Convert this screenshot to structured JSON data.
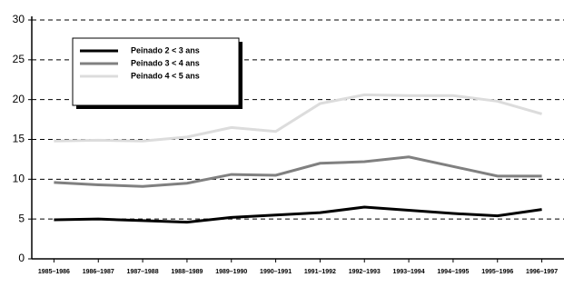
{
  "chart_data": {
    "type": "line",
    "categories": [
      "1985–1986",
      "1986–1987",
      "1987–1988",
      "1988–1989",
      "1989–1990",
      "1990–1991",
      "1991–1992",
      "1992–1993",
      "1993–1994",
      "1994–1995",
      "1995–1996",
      "1996–1997"
    ],
    "series": [
      {
        "name": "Peinado 2 < 3 ans",
        "color": "#000000",
        "values": [
          4.9,
          5.0,
          4.8,
          4.6,
          5.2,
          5.5,
          5.8,
          6.5,
          6.1,
          5.7,
          5.4,
          6.2
        ]
      },
      {
        "name": "Peinado 3 < 4 ans",
        "color": "#808080",
        "values": [
          9.6,
          9.3,
          9.1,
          9.5,
          10.6,
          10.5,
          12.0,
          12.2,
          12.8,
          11.6,
          10.4,
          10.4
        ]
      },
      {
        "name": "Peinado 4 < 5 ans",
        "color": "#dcdcdc",
        "values": [
          14.8,
          14.9,
          14.8,
          15.3,
          16.5,
          16.0,
          19.5,
          20.6,
          20.5,
          20.5,
          19.8,
          18.2
        ]
      }
    ],
    "ylim": [
      0,
      30
    ],
    "yticks": [
      0,
      5,
      10,
      15,
      20,
      25,
      30
    ],
    "grid": true
  }
}
